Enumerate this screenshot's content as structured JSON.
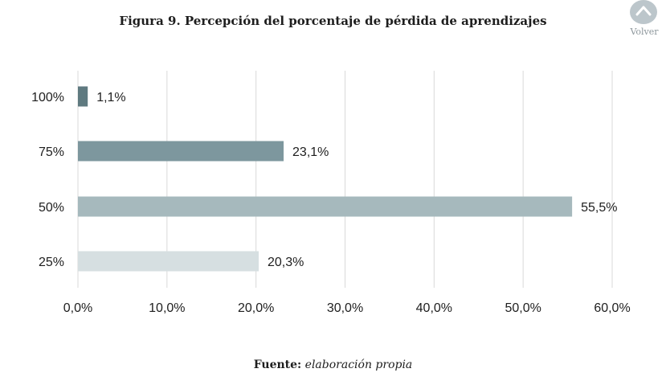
{
  "title": "Figura 9. Percepción del porcentaje de pérdida de aprendizajes",
  "volver": {
    "label": "Volver",
    "icon": "chevron-up-icon"
  },
  "source": {
    "label": "Fuente:",
    "text": "elaboración propia"
  },
  "colors": {
    "bars": [
      "#5f7a80",
      "#7d979e",
      "#a6b9bd",
      "#d6dfe1"
    ],
    "grid": "#d9d9d9",
    "text": "#1e1e1e"
  },
  "chart_data": {
    "type": "bar",
    "orientation": "horizontal",
    "title": "Figura 9. Percepción del porcentaje de pérdida de aprendizajes",
    "categories": [
      "100%",
      "75%",
      "50%",
      "25%"
    ],
    "values": [
      1.1,
      23.1,
      55.5,
      20.3
    ],
    "value_labels": [
      "1,1%",
      "23,1%",
      "55,5%",
      "20,3%"
    ],
    "xlim": [
      0,
      60
    ],
    "xticks": [
      0,
      10,
      20,
      30,
      40,
      50,
      60
    ],
    "xtick_labels": [
      "0,0%",
      "10,0%",
      "20,0%",
      "30,0%",
      "40,0%",
      "50,0%",
      "60,0%"
    ],
    "xlabel": "",
    "ylabel": "",
    "grid": true,
    "legend": "none"
  }
}
